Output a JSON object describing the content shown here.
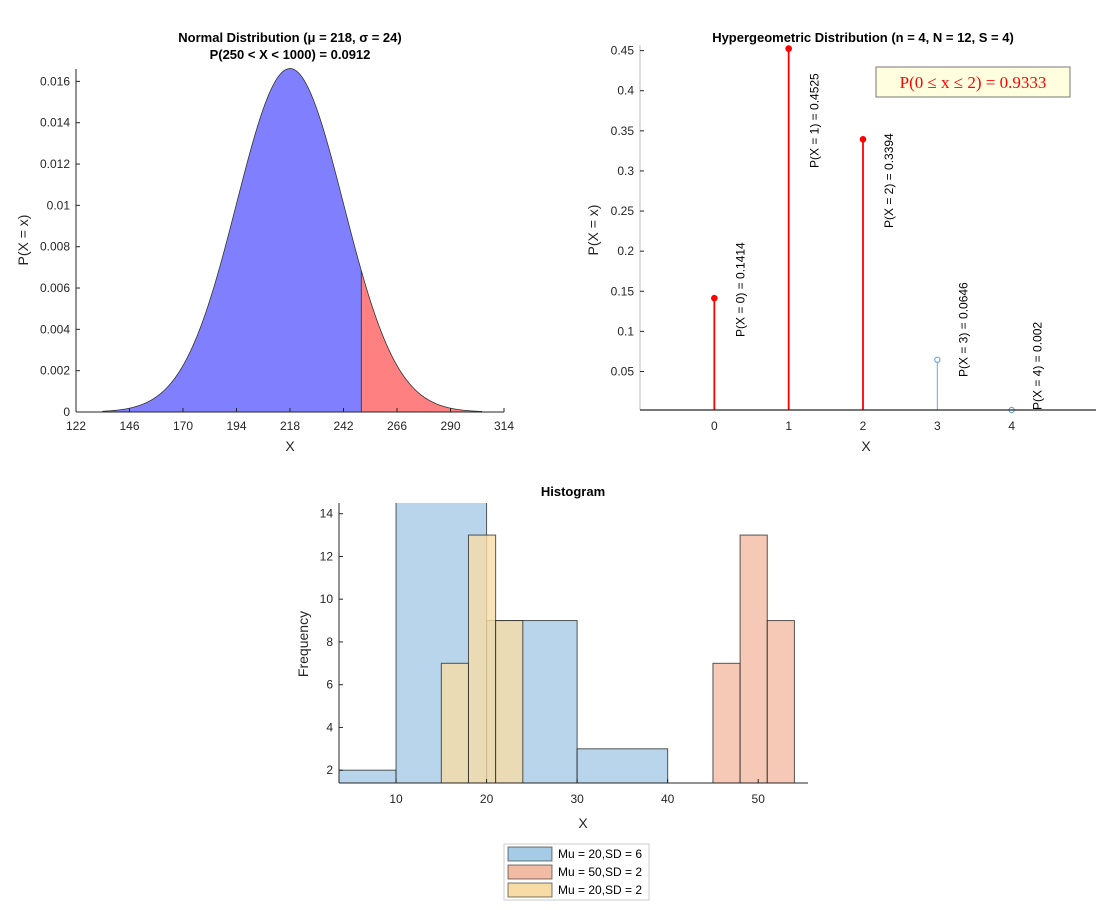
{
  "chart_data": [
    {
      "type": "area",
      "title": "Normal Distribution (μ = 218, σ = 24)",
      "subtitle": "P(250 < X < 1000) = 0.0912",
      "xlabel": "X",
      "ylabel": "P(X = x)",
      "mu": 218,
      "sigma": 24,
      "shaded_range": [
        250,
        1000
      ],
      "shaded_probability": 0.0912,
      "xlim": [
        122,
        314
      ],
      "ylim": [
        0,
        0.0166
      ],
      "xticks": [
        122,
        146,
        170,
        194,
        218,
        242,
        266,
        290,
        314
      ],
      "yticks": [
        0,
        0.002,
        0.004,
        0.006,
        0.008,
        0.01,
        0.012,
        0.014,
        0.016
      ],
      "ytick_labels": [
        "0",
        "0.002",
        "0.004",
        "0.006",
        "0.008",
        "0.01",
        "0.012",
        "0.014",
        "0.016"
      ],
      "colors": {
        "body": "#8080ff",
        "tail": "#ff8080"
      },
      "grid": false
    },
    {
      "type": "stem",
      "title": "Hypergeometric Distribution (n = 4, N = 12, S = 4)",
      "xlabel": "X",
      "ylabel": "P(X = x)",
      "x": [
        0,
        1,
        2,
        3,
        4
      ],
      "values": [
        0.1414,
        0.4525,
        0.3394,
        0.0646,
        0.002
      ],
      "labels": [
        "P(X = 0) = 0.1414",
        "P(X = 1) = 0.4525",
        "P(X = 2) = 0.3394",
        "P(X = 3) = 0.0646",
        "P(X = 4) = 0.002"
      ],
      "highlighted": [
        true,
        true,
        true,
        false,
        false
      ],
      "annotation": "P(0 ≤ x ≤ 2) = 0.9333",
      "xlim": [
        -1,
        5
      ],
      "ylim": [
        0.002,
        0.457
      ],
      "xticks": [
        0,
        1,
        2,
        3,
        4
      ],
      "yticks": [
        0.05,
        0.1,
        0.15,
        0.2,
        0.25,
        0.3,
        0.35,
        0.4,
        0.45
      ],
      "ytick_labels": [
        "0.05",
        "0.1",
        "0.15",
        "0.2",
        "0.25",
        "0.3",
        "0.35",
        "0.4",
        "0.45"
      ],
      "colors": {
        "highlight": "#ff0000",
        "other": "#6fa8dc",
        "annotation_bg": "#ffffe0"
      },
      "grid": false
    },
    {
      "type": "histogram",
      "title": "Histogram",
      "xlabel": "X",
      "ylabel": "Frequency",
      "xlim": [
        3.7,
        55.5
      ],
      "ylim": [
        1.4,
        14.5
      ],
      "xticks": [
        10,
        20,
        30,
        40,
        50
      ],
      "yticks": [
        2,
        4,
        6,
        8,
        10,
        12,
        14
      ],
      "legend_position": "bottom-outside",
      "series": [
        {
          "name": "Mu = 20,SD = 6",
          "color": "#a6cbe6",
          "bins": [
            [
              0,
              10,
              2
            ],
            [
              10,
              20,
              15
            ],
            [
              20,
              30,
              9
            ],
            [
              30,
              40,
              3
            ]
          ]
        },
        {
          "name": "Mu = 50,SD = 2",
          "color": "#f2bba3",
          "bins": [
            [
              45,
              48,
              7
            ],
            [
              48,
              51,
              13
            ],
            [
              51,
              54,
              9
            ]
          ]
        },
        {
          "name": "Mu = 20,SD = 2",
          "color": "#f8dca6",
          "bins": [
            [
              15,
              18,
              7
            ],
            [
              18,
              21,
              13
            ],
            [
              21,
              24,
              9
            ]
          ]
        }
      ],
      "grid": false
    }
  ]
}
